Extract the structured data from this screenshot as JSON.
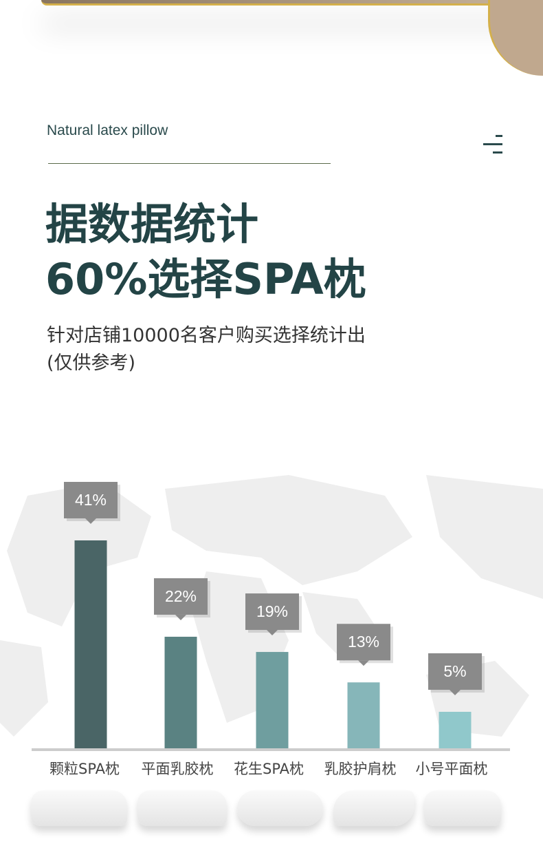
{
  "header": {
    "subtitle": "Natural latex pillow",
    "menu_icon": "menu-lines-icon"
  },
  "headline": {
    "line1": "据数据统计",
    "line2": "60%选择SPA枕"
  },
  "description": {
    "line1": "针对店铺10000名客户购买选择统计出",
    "line2": "(仅供参考)"
  },
  "chart_data": {
    "type": "bar",
    "categories": [
      "颗粒SPA枕",
      "平面乳胶枕",
      "花生SPA枕",
      "乳胶护肩枕",
      "小号平面枕"
    ],
    "values": [
      41,
      22,
      19,
      13,
      5
    ],
    "data_labels": [
      "41%",
      "22%",
      "19%",
      "13%",
      "5%"
    ],
    "colors": [
      "#4a6566",
      "#5a8282",
      "#6f9e9f",
      "#86b6b9",
      "#90c8cb"
    ],
    "label_box_color": "#8a8a8a",
    "ylim": [
      0,
      41
    ],
    "grid": false
  }
}
